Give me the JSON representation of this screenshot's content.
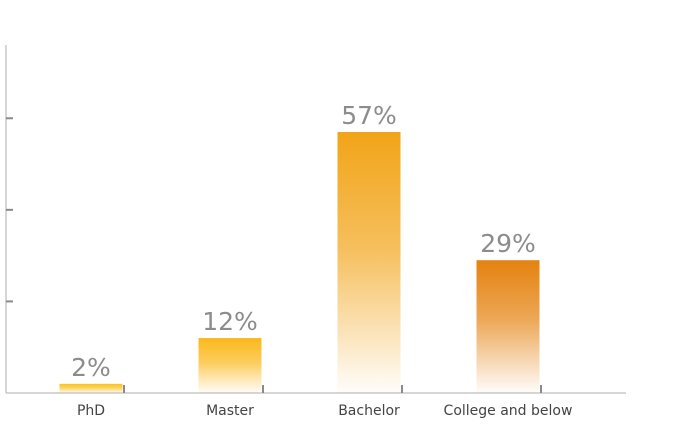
{
  "chart_data": {
    "type": "bar",
    "categories": [
      "PhD",
      "Master",
      "Bachelor",
      "College and below"
    ],
    "values": [
      2,
      12,
      57,
      29
    ],
    "value_labels": [
      "2%",
      "12%",
      "57%",
      "29%"
    ],
    "title": "",
    "xlabel": "",
    "ylabel": "",
    "ylim": [
      0,
      76
    ],
    "y_ticks": [
      20,
      40,
      60
    ],
    "grid": false,
    "legend": "none",
    "colors": {
      "bar_tops": [
        "#fbc21a",
        "#fbb81a",
        "#f2a418",
        "#e5820f"
      ],
      "bar_fade": "#ffffff",
      "axis": "#c8c8c8",
      "tick": "#8a8a8a",
      "value_text": "#8c8c8c",
      "category_text": "#444444"
    }
  }
}
